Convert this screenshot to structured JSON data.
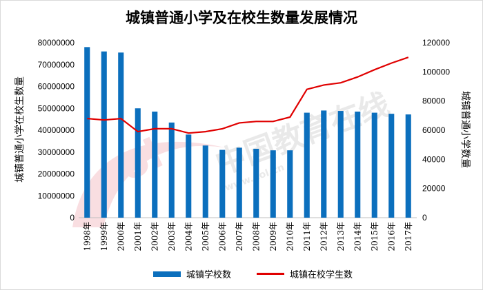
{
  "chart_data": {
    "type": "bar+line",
    "title": "城镇普通小学及在校生数量发展情况",
    "ylabel_left": "城镇普通小学在校生数量",
    "ylabel_right": "城镇普通小学数量",
    "categories": [
      "1998年",
      "1999年",
      "2000年",
      "2001年",
      "2002年",
      "2003年",
      "2004年",
      "2005年",
      "2006年",
      "2007年",
      "2008年",
      "2009年",
      "2010年",
      "2011年",
      "2012年",
      "2013年",
      "2014年",
      "2015年",
      "2016年",
      "2017年"
    ],
    "ylim_left": [
      0,
      80000000
    ],
    "yticks_left": [
      "0",
      "10000000",
      "20000000",
      "30000000",
      "40000000",
      "50000000",
      "60000000",
      "70000000",
      "80000000"
    ],
    "ylim_right": [
      0,
      120000
    ],
    "yticks_right": [
      "0",
      "20000",
      "40000",
      "60000",
      "80000",
      "100000",
      "120000"
    ],
    "series": [
      {
        "name": "城镇学校数",
        "type": "bar",
        "axis": "left",
        "color": "#0b6fbd",
        "values": [
          78000000,
          76000000,
          75500000,
          50000000,
          48500000,
          43500000,
          38000000,
          33000000,
          31000000,
          32000000,
          31500000,
          30800000,
          30800000,
          48000000,
          49000000,
          48800000,
          48500000,
          48000000,
          47500000,
          47200000
        ]
      },
      {
        "name": "城镇在校学生数",
        "type": "line",
        "axis": "right",
        "color": "#e00000",
        "values": [
          68000,
          67000,
          68000,
          59000,
          61000,
          61000,
          58000,
          59000,
          61000,
          65000,
          66000,
          66000,
          69000,
          88000,
          91000,
          92500,
          96500,
          101500,
          106000,
          110000
        ]
      }
    ],
    "grid": false,
    "legend_position": "bottom"
  },
  "watermark": {
    "text": "中国教育在线",
    "url": "www.eol.cn",
    "logo": "eol"
  }
}
